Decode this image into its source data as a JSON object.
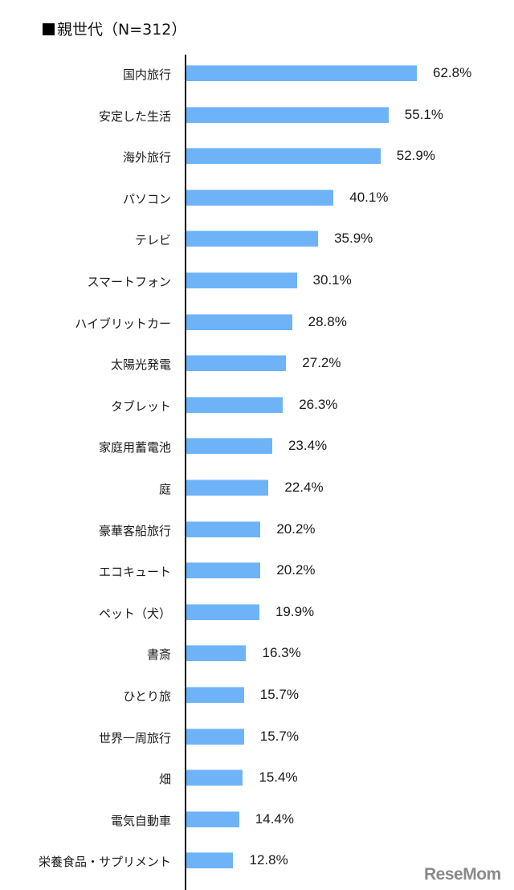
{
  "chart_data": {
    "type": "bar",
    "orientation": "horizontal",
    "title": "■親世代（N=312）",
    "xlabel": "",
    "ylabel": "",
    "unit": "%",
    "xlim": [
      0,
      70
    ],
    "grid": false,
    "legend": null,
    "bar_color": "#6eb3f7",
    "categories": [
      "国内旅行",
      "安定した生活",
      "海外旅行",
      "パソコン",
      "テレビ",
      "スマートフォン",
      "ハイブリットカー",
      "太陽光発電",
      "タブレット",
      "家庭用蓄電池",
      "庭",
      "豪華客船旅行",
      "エコキュート",
      "ペット（犬）",
      "書斎",
      "ひとり旅",
      "世界一周旅行",
      "畑",
      "電気自動車",
      "栄養食品・サプリメント"
    ],
    "values": [
      62.8,
      55.1,
      52.9,
      40.1,
      35.9,
      30.1,
      28.8,
      27.2,
      26.3,
      23.4,
      22.4,
      20.2,
      20.2,
      19.9,
      16.3,
      15.7,
      15.7,
      15.4,
      14.4,
      12.8
    ],
    "value_labels": [
      "62.8%",
      "55.1%",
      "52.9%",
      "40.1%",
      "35.9%",
      "30.1%",
      "28.8%",
      "27.2%",
      "26.3%",
      "23.4%",
      "22.4%",
      "20.2%",
      "20.2%",
      "19.9%",
      "16.3%",
      "15.7%",
      "15.7%",
      "15.4%",
      "14.4%",
      "12.8%"
    ]
  },
  "header": {
    "title_text": "親世代（N=312）"
  },
  "watermark": {
    "text": "ReseMom"
  }
}
